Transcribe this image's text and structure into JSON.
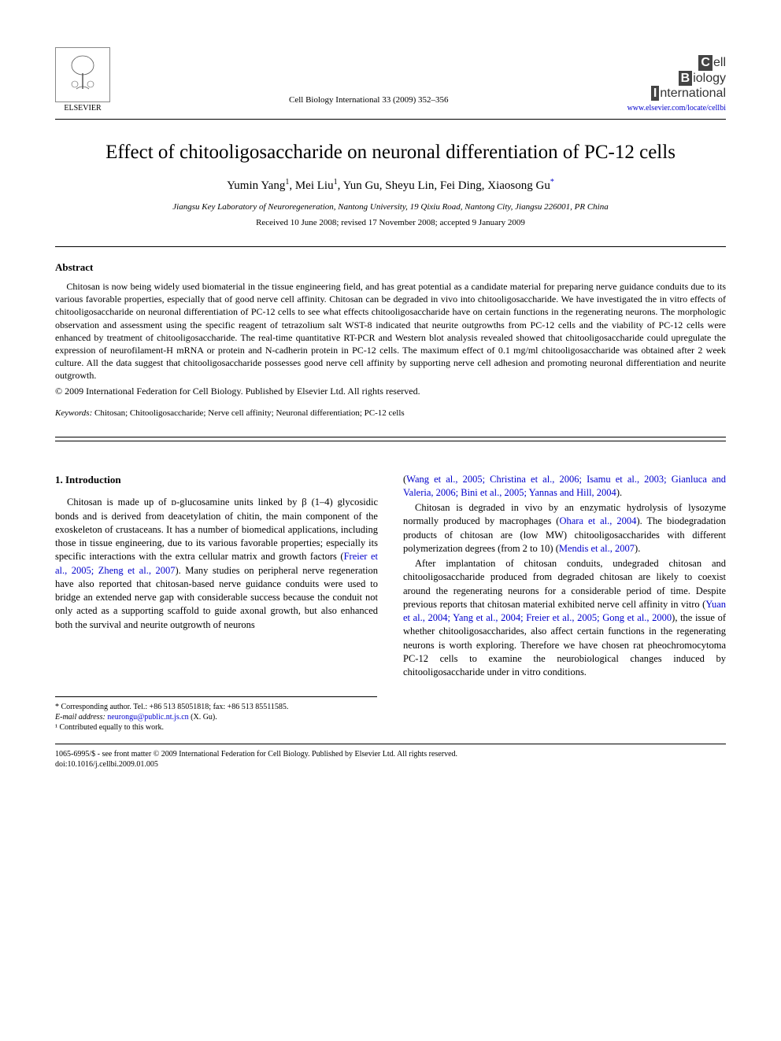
{
  "header": {
    "publisher_name": "ELSEVIER",
    "journal_ref": "Cell Biology International 33 (2009) 352–356",
    "journal_logo_lines": [
      {
        "letter": "C",
        "word": "ell"
      },
      {
        "letter": "B",
        "word": "iology"
      },
      {
        "letter": "I",
        "word": "nternational"
      }
    ],
    "journal_url": "www.elsevier.com/locate/cellbi"
  },
  "article": {
    "title": "Effect of chitooligosaccharide on neuronal differentiation of PC-12 cells",
    "authors_html": "Yumin Yang<sup>1</sup>, Mei Liu<sup>1</sup>, Yun Gu, Sheyu Lin, Fei Ding, Xiaosong Gu<sup class=\"corr\">*</sup>",
    "affiliation": "Jiangsu Key Laboratory of Neuroregeneration, Nantong University, 19 Qixiu Road, Nantong City, Jiangsu 226001, PR China",
    "dates": "Received 10 June 2008; revised 17 November 2008; accepted 9 January 2009"
  },
  "abstract": {
    "heading": "Abstract",
    "text": "Chitosan is now being widely used biomaterial in the tissue engineering field, and has great potential as a candidate material for preparing nerve guidance conduits due to its various favorable properties, especially that of good nerve cell affinity. Chitosan can be degraded in vivo into chitooligosaccharide. We have investigated the in vitro effects of chitooligosaccharide on neuronal differentiation of PC-12 cells to see what effects chitooligosaccharide have on certain functions in the regenerating neurons. The morphologic observation and assessment using the specific reagent of tetrazolium salt WST-8 indicated that neurite outgrowths from PC-12 cells and the viability of PC-12 cells were enhanced by treatment of chitooligosaccharide. The real-time quantitative RT-PCR and Western blot analysis revealed showed that chitooligosaccharide could upregulate the expression of neurofilament-H mRNA or protein and N-cadherin protein in PC-12 cells. The maximum effect of 0.1 mg/ml chitooligosaccharide was obtained after 2 week culture. All the data suggest that chitooligosaccharide possesses good nerve cell affinity by supporting nerve cell adhesion and promoting neuronal differentiation and neurite outgrowth.",
    "copyright": "© 2009 International Federation for Cell Biology. Published by Elsevier Ltd. All rights reserved."
  },
  "keywords": {
    "label": "Keywords:",
    "text": " Chitosan; Chitooligosaccharide; Nerve cell affinity; Neuronal differentiation; PC-12 cells"
  },
  "body": {
    "section_heading": "1. Introduction",
    "left_paragraphs": [
      "Chitosan is made up of ᴅ-glucosamine units linked by β (1–4) glycosidic bonds and is derived from deacetylation of chitin, the main component of the exoskeleton of crustaceans. It has a number of biomedical applications, including those in tissue engineering, due to its various favorable properties; especially its specific interactions with the extra cellular matrix and growth factors (<span class=\"ref\">Freier et al., 2005; Zheng et al., 2007</span>). Many studies on peripheral nerve regeneration have also reported that chitosan-based nerve guidance conduits were used to bridge an extended nerve gap with considerable success because the conduit not only acted as a supporting scaffold to guide axonal growth, but also enhanced both the survival and neurite outgrowth of neurons"
    ],
    "right_paragraphs": [
      "(<span class=\"ref\">Wang et al., 2005; Christina et al., 2006; Isamu et al., 2003; Gianluca and Valeria, 2006; Bini et al., 2005; Yannas and Hill, 2004</span>).",
      "Chitosan is degraded in vivo by an enzymatic hydrolysis of lysozyme normally produced by macrophages (<span class=\"ref\">Ohara et al., 2004</span>). The biodegradation products of chitosan are (low MW) chitooligosaccharides with different polymerization degrees (from 2 to 10) (<span class=\"ref\">Mendis et al., 2007</span>).",
      "After implantation of chitosan conduits, undegraded chitosan and chitooligosaccharide produced from degraded chitosan are likely to coexist around the regenerating neurons for a considerable period of time. Despite previous reports that chitosan material exhibited nerve cell affinity in vitro (<span class=\"ref\">Yuan et al., 2004; Yang et al., 2004; Freier et al., 2005; Gong et al., 2000</span>), the issue of whether chitooligosaccharides, also affect certain functions in the regenerating neurons is worth exploring. Therefore we have chosen rat pheochromocytoma PC-12 cells to examine the neurobiological changes induced by chitooligosaccharide under in vitro conditions."
    ]
  },
  "footnotes": {
    "corr": "* Corresponding author. Tel.: +86 513 85051818; fax: +86 513 85511585.",
    "email_label": "E-mail address:",
    "email": "neurongu@public.nt.js.cn",
    "email_suffix": " (X. Gu).",
    "equal": "¹ Contributed equally to this work."
  },
  "footer": {
    "line1": "1065-6995/$ - see front matter © 2009 International Federation for Cell Biology. Published by Elsevier Ltd. All rights reserved.",
    "line2": "doi:10.1016/j.cellbi.2009.01.005"
  }
}
